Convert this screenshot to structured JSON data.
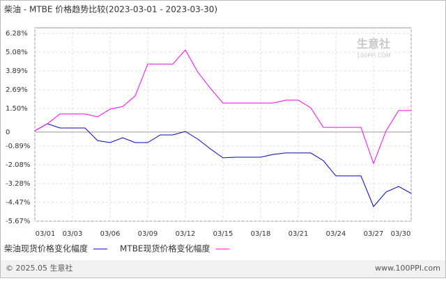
{
  "chart_data": {
    "type": "line",
    "title": "柴油 - MTBE 价格趋势比较(2023-03-01 - 2023-03-30)",
    "watermark": "生意社",
    "watermark_sub": "100PPI.COM",
    "footer_left": "© 2025.05 生意社",
    "footer_right": "www.100PPI.com",
    "categories": [
      "03/01",
      null,
      null,
      "03/03",
      null,
      null,
      "03/06",
      null,
      null,
      "03/09",
      null,
      null,
      "03/12",
      null,
      null,
      "03/15",
      null,
      null,
      "03/18",
      null,
      null,
      "03/21",
      null,
      null,
      "03/24",
      null,
      null,
      "03/27",
      null,
      null,
      "03/30"
    ],
    "ylim": [
      -5.67,
      6.28
    ],
    "yticks": [
      6.28,
      5.08,
      3.89,
      2.69,
      {
        "value": 1.5,
        "label": "1.50%"
      },
      0,
      -0.89,
      -2.08,
      -3.28,
      -4.47,
      -5.67
    ],
    "ytick_labels": [
      "6.28%",
      "5.08%",
      "3.89%",
      "2.69%",
      "1.50%",
      "0",
      "-0.89%",
      "-2.08%",
      "-3.28%",
      "-4.47%",
      "-5.67%"
    ],
    "grid": true,
    "series": [
      {
        "name": "柴油现货价格变化幅度",
        "color": "#0000cc",
        "values": [
          0.08,
          0.53,
          0.26,
          0.26,
          0.26,
          -0.54,
          -0.67,
          -0.36,
          -0.67,
          -0.67,
          -0.18,
          -0.18,
          0.04,
          -0.45,
          -1.07,
          -1.64,
          -1.6,
          -1.6,
          -1.6,
          -1.42,
          -1.33,
          -1.33,
          -1.33,
          -1.82,
          -2.79,
          -2.79,
          -2.79,
          -4.74,
          -3.81,
          -3.46,
          -3.9
        ]
      },
      {
        "name": "MTBE现货价格变化幅度",
        "color": "#ff00ff",
        "values": [
          0.08,
          0.53,
          1.15,
          1.15,
          1.15,
          0.97,
          1.46,
          1.63,
          2.3,
          4.33,
          4.33,
          4.33,
          5.22,
          3.8,
          2.78,
          1.85,
          1.85,
          1.85,
          1.85,
          1.85,
          2.03,
          2.03,
          1.54,
          0.3,
          0.3,
          0.3,
          0.3,
          -2.0,
          0.08,
          1.37,
          1.37
        ]
      }
    ]
  }
}
